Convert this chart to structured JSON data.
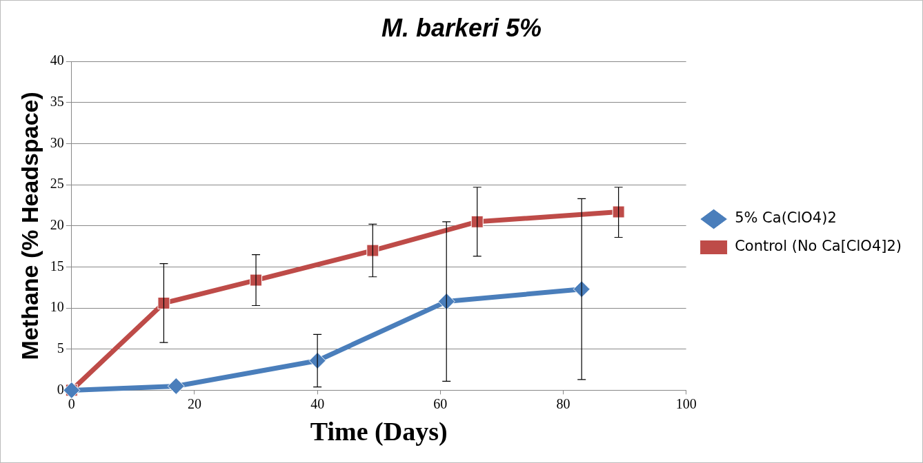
{
  "chart_data": {
    "type": "line",
    "title": "M. barkeri 5%",
    "xlabel": "Time (Days)",
    "ylabel": "Methane (% Headspace)",
    "xlim": [
      0,
      100
    ],
    "xticks": [
      0,
      20,
      40,
      60,
      80,
      100
    ],
    "ylim": [
      0,
      40
    ],
    "yticks": [
      0,
      5,
      10,
      15,
      20,
      25,
      30,
      35,
      40
    ],
    "grid": "y",
    "legend": "right",
    "line_style": "solid",
    "series": [
      {
        "name": "5% Ca(ClO4)2",
        "color": "#4a7ebb",
        "marker": "diamond",
        "x": [
          0,
          17,
          40,
          61,
          83
        ],
        "values": [
          0,
          0.5,
          3.6,
          10.8,
          12.3
        ],
        "errors": [
          null,
          null,
          [
            0.4,
            6.8
          ],
          [
            1.1,
            20.5
          ],
          [
            1.3,
            23.3
          ]
        ]
      },
      {
        "name": "Control (No Ca[ClO4]2)",
        "color": "#be4b48",
        "marker": "square",
        "x": [
          0,
          15,
          30,
          49,
          66,
          89
        ],
        "values": [
          0,
          10.6,
          13.4,
          17,
          20.5,
          21.7
        ],
        "errors": [
          null,
          [
            5.8,
            15.4
          ],
          [
            10.3,
            16.5
          ],
          [
            13.8,
            20.2
          ],
          [
            16.3,
            24.7
          ],
          [
            18.6,
            24.7
          ]
        ]
      }
    ]
  }
}
